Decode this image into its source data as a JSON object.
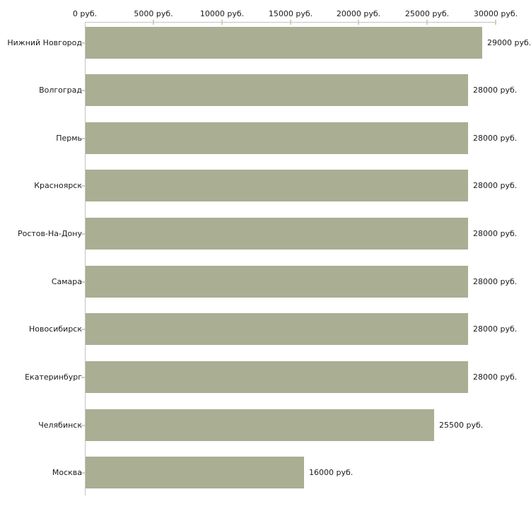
{
  "chart_data": {
    "type": "bar",
    "orientation": "horizontal",
    "title": "",
    "xlabel": "",
    "ylabel": "",
    "unit": "руб.",
    "categories": [
      "Нижний Новгород",
      "Волгоград",
      "Пермь",
      "Красноярск",
      "Ростов-На-Дону",
      "Самара",
      "Новосибирск",
      "Екатеринбург",
      "Челябинск",
      "Москва"
    ],
    "values": [
      29000,
      28000,
      28000,
      28000,
      28000,
      28000,
      28000,
      28000,
      25500,
      16000
    ],
    "value_labels": [
      "29000 руб.",
      "28000 руб.",
      "28000 руб.",
      "28000 руб.",
      "28000 руб.",
      "28000 руб.",
      "28000 руб.",
      "28000 руб.",
      "25500 руб.",
      "16000 руб."
    ],
    "x_axis": {
      "position": "top",
      "xlim": [
        0,
        30000
      ],
      "ticks": [
        0,
        5000,
        10000,
        15000,
        20000,
        25000,
        30000
      ],
      "tick_labels": [
        "0 руб.",
        "5000 руб.",
        "10000 руб.",
        "15000 руб.",
        "20000 руб.",
        "25000 руб.",
        "30000 руб."
      ]
    },
    "grid": false,
    "legend": false,
    "colors": {
      "bar": "#aaae93",
      "axis_line": "#c3c3c3",
      "tick_mark": "#cdd2b3",
      "text": "#1a1a1a",
      "background": "#ffffff"
    }
  }
}
